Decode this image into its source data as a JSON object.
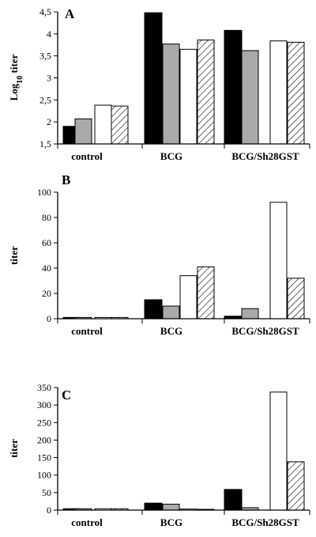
{
  "chart_data": [
    {
      "type": "bar",
      "panel_label": "A",
      "ylabel": "Log10 titer",
      "ylabel_main": "Log",
      "ylabel_sub": "10",
      "ylabel_rest": " titer",
      "ylim": [
        1.5,
        4.5
      ],
      "yticks": [
        1.5,
        2,
        2.5,
        3,
        3.5,
        4,
        4.5
      ],
      "ytick_labels": [
        "1,5",
        "2",
        "2,5",
        "3",
        "3,5",
        "4",
        "4,5"
      ],
      "categories": [
        "control",
        "BCG",
        "BCG/Sh28GST"
      ],
      "series": [
        {
          "fill": "#000000",
          "values": [
            1.9,
            4.48,
            4.08
          ]
        },
        {
          "fill": "#a9a9a9",
          "values": [
            2.07,
            3.77,
            3.62
          ]
        },
        {
          "fill": "#ffffff",
          "values": [
            2.38,
            3.65,
            3.84
          ]
        },
        {
          "fill": "hatch",
          "values": [
            2.36,
            3.86,
            3.81
          ]
        }
      ]
    },
    {
      "type": "bar",
      "panel_label": "B",
      "ylabel": "titer",
      "ylim": [
        0,
        100
      ],
      "yticks": [
        0,
        20,
        40,
        60,
        80,
        100
      ],
      "ytick_labels": [
        "0",
        "20",
        "40",
        "60",
        "80",
        "100"
      ],
      "categories": [
        "control",
        "BCG",
        "BCG/Sh28GST"
      ],
      "series": [
        {
          "fill": "#000000",
          "values": [
            1,
            15,
            2
          ]
        },
        {
          "fill": "#a9a9a9",
          "values": [
            1,
            10,
            8
          ]
        },
        {
          "fill": "#ffffff",
          "values": [
            1,
            34,
            92
          ]
        },
        {
          "fill": "hatch",
          "values": [
            1,
            41,
            32
          ]
        }
      ]
    },
    {
      "type": "bar",
      "panel_label": "C",
      "ylabel": "titer",
      "ylim": [
        0,
        350
      ],
      "yticks": [
        0,
        50,
        100,
        150,
        200,
        250,
        300,
        350
      ],
      "ytick_labels": [
        "0",
        "50",
        "100",
        "150",
        "200",
        "250",
        "300",
        "350"
      ],
      "categories": [
        "control",
        "BCG",
        "BCG/Sh28GST"
      ],
      "series": [
        {
          "fill": "#000000",
          "values": [
            4,
            20,
            59
          ]
        },
        {
          "fill": "#a9a9a9",
          "values": [
            4,
            17,
            7
          ]
        },
        {
          "fill": "#ffffff",
          "values": [
            4,
            3,
            337
          ]
        },
        {
          "fill": "hatch",
          "values": [
            4,
            2,
            138
          ]
        }
      ]
    }
  ]
}
